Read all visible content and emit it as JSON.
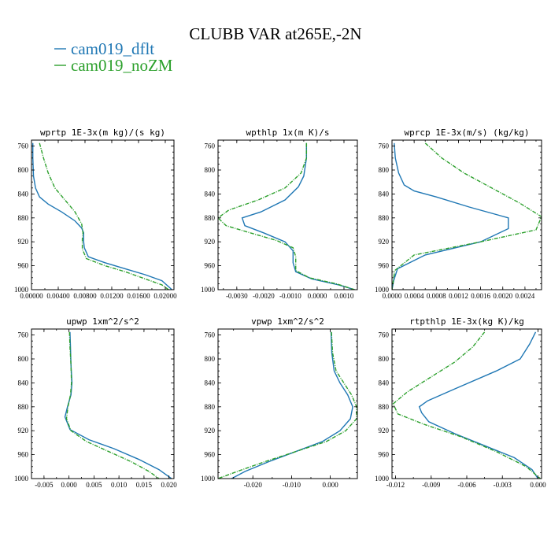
{
  "title": "CLUBB VAR at265E,-2N",
  "legend": [
    {
      "label": "cam019_dflt",
      "color": "#1f77b4"
    },
    {
      "label": "cam019_noZM",
      "color": "#2ca02c"
    }
  ],
  "chart_data": [
    {
      "type": "line",
      "title": "wprtp  1E-3x(m kg)/(s kg)",
      "xlim": [
        0,
        0.0213
      ],
      "ylim": [
        750,
        1000
      ],
      "y_inverted": true,
      "xticks": [
        0,
        0.004,
        0.008,
        0.012,
        0.016,
        0.02
      ],
      "xtick_labels": [
        "0.00000",
        "0.00400",
        "0.00800",
        "0.01200",
        "0.01600",
        "0.02000"
      ],
      "yticks": [
        760,
        800,
        840,
        880,
        920,
        960,
        1000
      ],
      "series": [
        {
          "name": "cam019_dflt",
          "color": "#1f77b4",
          "dashed": false,
          "x": [
            0.0002,
            0.0002,
            0.0003,
            0.0006,
            0.0012,
            0.0025,
            0.0045,
            0.0065,
            0.0075,
            0.0078,
            0.0078,
            0.0079,
            0.0085,
            0.011,
            0.014,
            0.017,
            0.0195,
            0.021
          ],
          "y": [
            755,
            780,
            810,
            830,
            845,
            857,
            870,
            885,
            897,
            905,
            920,
            930,
            945,
            955,
            965,
            975,
            985,
            1000
          ]
        },
        {
          "name": "cam019_noZM",
          "color": "#2ca02c",
          "dashed": true,
          "x": [
            0.0012,
            0.0018,
            0.0025,
            0.0035,
            0.005,
            0.0065,
            0.0075,
            0.0077,
            0.0076,
            0.0076,
            0.0082,
            0.011,
            0.014,
            0.017,
            0.0195,
            0.0205
          ],
          "y": [
            755,
            780,
            805,
            830,
            850,
            870,
            890,
            905,
            915,
            932,
            948,
            960,
            970,
            982,
            992,
            1000
          ]
        }
      ]
    },
    {
      "type": "line",
      "title": "wpthlp  1x(m K)/s",
      "xlim": [
        -0.0037,
        0.0015
      ],
      "ylim": [
        750,
        1000
      ],
      "y_inverted": true,
      "xticks": [
        -0.003,
        -0.002,
        -0.001,
        0.0,
        0.001
      ],
      "xtick_labels": [
        "-0.0030",
        "-0.0020",
        "-0.0010",
        "0.0000",
        "0.0010"
      ],
      "yticks": [
        760,
        800,
        840,
        880,
        920,
        960,
        1000
      ],
      "series": [
        {
          "name": "cam019_dflt",
          "color": "#1f77b4",
          "dashed": false,
          "x": [
            -0.0004,
            -0.0004,
            -0.0005,
            -0.0007,
            -0.0012,
            -0.0021,
            -0.0028,
            -0.0027,
            -0.002,
            -0.0012,
            -0.0009,
            -0.0009,
            -0.0008,
            -0.0002,
            0.0008,
            0.0014
          ],
          "y": [
            755,
            780,
            810,
            828,
            850,
            870,
            880,
            893,
            905,
            920,
            935,
            955,
            970,
            982,
            992,
            1000
          ]
        },
        {
          "name": "cam019_noZM",
          "color": "#2ca02c",
          "dashed": true,
          "x": [
            -0.0004,
            -0.0004,
            -0.0006,
            -0.0012,
            -0.0022,
            -0.0033,
            -0.0037,
            -0.0034,
            -0.0025,
            -0.0015,
            -0.0009,
            -0.0008,
            -0.0008,
            -0.0003,
            0.0007,
            0.0014
          ],
          "y": [
            755,
            780,
            805,
            830,
            850,
            867,
            880,
            893,
            905,
            918,
            930,
            945,
            968,
            980,
            990,
            1000
          ]
        }
      ]
    },
    {
      "type": "line",
      "title": "wprcp  1E-3x(m/s) (kg/kg)",
      "xlim": [
        0,
        0.0027
      ],
      "ylim": [
        750,
        1000
      ],
      "y_inverted": true,
      "xticks": [
        0,
        0.0004,
        0.0008,
        0.0012,
        0.0016,
        0.002,
        0.0024
      ],
      "xtick_labels": [
        "0.0000",
        "0.0004",
        "0.0008",
        "0.0012",
        "0.0016",
        "0.0020",
        "0.0024"
      ],
      "yticks": [
        760,
        800,
        840,
        880,
        920,
        960,
        1000
      ],
      "series": [
        {
          "name": "cam019_dflt",
          "color": "#1f77b4",
          "dashed": false,
          "x": [
            4e-05,
            6e-05,
            0.00012,
            0.00022,
            0.0004,
            0.0008,
            0.0014,
            0.0021,
            0.0021,
            0.0016,
            0.0006,
            0.0001,
            3e-05,
            0.0
          ],
          "y": [
            755,
            780,
            805,
            825,
            835,
            845,
            862,
            880,
            898,
            920,
            942,
            965,
            985,
            1000
          ]
        },
        {
          "name": "cam019_noZM",
          "color": "#2ca02c",
          "dashed": true,
          "x": [
            0.0006,
            0.0009,
            0.0013,
            0.0018,
            0.0023,
            0.0027,
            0.0026,
            0.0016,
            0.0004,
            5e-05,
            0.0
          ],
          "y": [
            755,
            780,
            805,
            830,
            855,
            878,
            900,
            920,
            942,
            968,
            1000
          ]
        }
      ]
    },
    {
      "type": "line",
      "title": "upwp  1xm^2/s^2",
      "xlim": [
        -0.0075,
        0.021
      ],
      "ylim": [
        750,
        1000
      ],
      "y_inverted": true,
      "xticks": [
        -0.005,
        0.0,
        0.005,
        0.01,
        0.015,
        0.02
      ],
      "xtick_labels": [
        "-0.005",
        "0.000",
        "0.005",
        "0.010",
        "0.015",
        "0.020"
      ],
      "yticks": [
        760,
        800,
        840,
        880,
        920,
        960,
        1000
      ],
      "series": [
        {
          "name": "cam019_dflt",
          "color": "#1f77b4",
          "dashed": false,
          "x": [
            0.0002,
            0.0003,
            0.0004,
            0.0006,
            0.0004,
            -0.0003,
            -0.0008,
            0.0002,
            0.004,
            0.009,
            0.014,
            0.018,
            0.0205
          ],
          "y": [
            755,
            780,
            810,
            840,
            860,
            880,
            897,
            918,
            935,
            950,
            968,
            985,
            1000
          ]
        },
        {
          "name": "cam019_noZM",
          "color": "#2ca02c",
          "dashed": true,
          "x": [
            0.0001,
            0.0002,
            0.0004,
            0.0005,
            0.0003,
            -0.0002,
            -0.0005,
            0.0004,
            0.0035,
            0.008,
            0.0125,
            0.016,
            0.018
          ],
          "y": [
            755,
            780,
            810,
            840,
            860,
            880,
            900,
            920,
            938,
            955,
            972,
            988,
            1000
          ]
        }
      ]
    },
    {
      "type": "line",
      "title": "vpwp  1xm^2/s^2",
      "xlim": [
        -0.029,
        0.007
      ],
      "ylim": [
        750,
        1000
      ],
      "y_inverted": true,
      "xticks": [
        -0.02,
        -0.01,
        0.0
      ],
      "xtick_labels": [
        "-0.020",
        "-0.010",
        "0.000"
      ],
      "yticks": [
        760,
        800,
        840,
        880,
        920,
        960,
        1000
      ],
      "series": [
        {
          "name": "cam019_dflt",
          "color": "#1f77b4",
          "dashed": false,
          "x": [
            0.0002,
            0.0004,
            0.001,
            0.0025,
            0.0045,
            0.0058,
            0.0052,
            0.0025,
            -0.002,
            -0.009,
            -0.016,
            -0.022,
            -0.0255
          ],
          "y": [
            755,
            790,
            820,
            840,
            860,
            880,
            900,
            920,
            938,
            955,
            972,
            988,
            1000
          ]
        },
        {
          "name": "cam019_noZM",
          "color": "#2ca02c",
          "dashed": true,
          "x": [
            0.0003,
            0.0006,
            0.0015,
            0.0035,
            0.0055,
            0.0068,
            0.0068,
            0.004,
            -0.001,
            -0.009,
            -0.017,
            -0.024,
            -0.029
          ],
          "y": [
            755,
            790,
            820,
            840,
            860,
            880,
            900,
            920,
            938,
            955,
            972,
            988,
            1000
          ]
        }
      ]
    },
    {
      "type": "line",
      "title": "rtpthlp  1E-3x(kg K)/kg",
      "xlim": [
        -0.0123,
        0.0003
      ],
      "ylim": [
        750,
        1000
      ],
      "y_inverted": true,
      "xticks": [
        -0.012,
        -0.009,
        -0.006,
        -0.003,
        0.0
      ],
      "xtick_labels": [
        "-0.012",
        "-0.009",
        "-0.006",
        "-0.003",
        "0.000"
      ],
      "yticks": [
        760,
        800,
        840,
        880,
        920,
        960,
        1000
      ],
      "series": [
        {
          "name": "cam019_dflt",
          "color": "#1f77b4",
          "dashed": false,
          "x": [
            -0.0002,
            -0.0007,
            -0.0015,
            -0.0035,
            -0.007,
            -0.0093,
            -0.01,
            -0.0098,
            -0.0092,
            -0.007,
            -0.0045,
            -0.002,
            -0.0005,
            0.0
          ],
          "y": [
            755,
            775,
            800,
            820,
            850,
            870,
            880,
            890,
            905,
            925,
            945,
            965,
            985,
            1000
          ]
        },
        {
          "name": "cam019_noZM",
          "color": "#2ca02c",
          "dashed": true,
          "x": [
            -0.0045,
            -0.0055,
            -0.007,
            -0.009,
            -0.011,
            -0.0122,
            -0.0118,
            -0.0095,
            -0.0065,
            -0.0035,
            -0.001,
            0.0002
          ],
          "y": [
            755,
            780,
            805,
            830,
            855,
            875,
            892,
            910,
            930,
            955,
            980,
            1000
          ]
        }
      ]
    }
  ]
}
